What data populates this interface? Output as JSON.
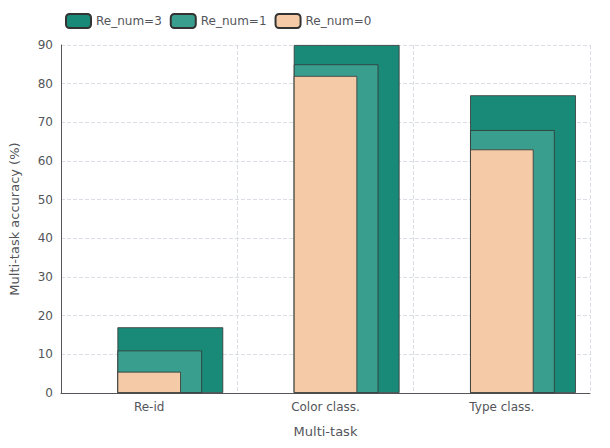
{
  "chart_data": {
    "type": "bar",
    "xlabel": "Multi-task",
    "ylabel": "Multi-task accuracy (%)",
    "categories": [
      "Re-id",
      "Color class.",
      "Type class."
    ],
    "series": [
      {
        "name": "Re_num=3",
        "color": "#1a8a78",
        "values": [
          17,
          90,
          77
        ]
      },
      {
        "name": "Re_num=1",
        "color": "#3a9e8e",
        "values": [
          11,
          85,
          68
        ]
      },
      {
        "name": "Re_num=0",
        "color": "#f5cba7",
        "values": [
          5.5,
          82,
          63
        ]
      }
    ],
    "ylim": [
      0,
      90
    ],
    "yticks": [
      0,
      10,
      20,
      30,
      40,
      50,
      60,
      70,
      80,
      90
    ],
    "grid": true,
    "legend": "upper left"
  }
}
